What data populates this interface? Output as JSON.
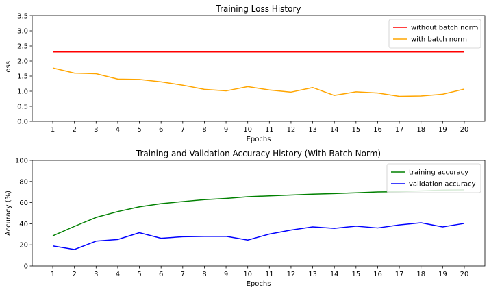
{
  "chart_data": [
    {
      "type": "line",
      "title": "Training Loss History",
      "xlabel": "Epochs",
      "ylabel": "Loss",
      "x": [
        1,
        2,
        3,
        4,
        5,
        6,
        7,
        8,
        9,
        10,
        11,
        12,
        13,
        14,
        15,
        16,
        17,
        18,
        19,
        20
      ],
      "xticks": [
        "1",
        "2",
        "3",
        "4",
        "5",
        "6",
        "7",
        "8",
        "9",
        "10",
        "11",
        "12",
        "13",
        "14",
        "15",
        "16",
        "17",
        "18",
        "19",
        "20"
      ],
      "ylim": [
        0,
        3.5
      ],
      "yticks": [
        "0.0",
        "0.5",
        "1.0",
        "1.5",
        "2.0",
        "2.5",
        "3.0",
        "3.5"
      ],
      "grid": false,
      "legend_position": "top-right",
      "series": [
        {
          "name": "without batch norm",
          "color": "#ff0000",
          "values": [
            2.3,
            2.3,
            2.3,
            2.3,
            2.3,
            2.3,
            2.3,
            2.3,
            2.3,
            2.3,
            2.3,
            2.3,
            2.3,
            2.3,
            2.3,
            2.3,
            2.3,
            2.3,
            2.3,
            2.3
          ]
        },
        {
          "name": "with batch norm",
          "color": "#ffa500",
          "values": [
            1.77,
            1.6,
            1.58,
            1.4,
            1.39,
            1.31,
            1.2,
            1.06,
            1.01,
            1.15,
            1.04,
            0.97,
            1.12,
            0.86,
            0.98,
            0.94,
            0.83,
            0.84,
            0.9,
            1.07
          ]
        }
      ]
    },
    {
      "type": "line",
      "title": "Training and Validation Accuracy History (With Batch Norm)",
      "xlabel": "Epochs",
      "ylabel": "Accuracy (%)",
      "x": [
        1,
        2,
        3,
        4,
        5,
        6,
        7,
        8,
        9,
        10,
        11,
        12,
        13,
        14,
        15,
        16,
        17,
        18,
        19,
        20
      ],
      "xticks": [
        "1",
        "2",
        "3",
        "4",
        "5",
        "6",
        "7",
        "8",
        "9",
        "10",
        "11",
        "12",
        "13",
        "14",
        "15",
        "16",
        "17",
        "18",
        "19",
        "20"
      ],
      "ylim": [
        0,
        100
      ],
      "yticks": [
        "0",
        "20",
        "40",
        "60",
        "80",
        "100"
      ],
      "grid": false,
      "legend_position": "top-right",
      "series": [
        {
          "name": "training accuracy",
          "color": "#008000",
          "values": [
            28.5,
            37.5,
            46.0,
            51.5,
            56.0,
            59.0,
            61.0,
            62.8,
            64.0,
            65.6,
            66.4,
            67.2,
            68.0,
            68.6,
            69.3,
            70.1,
            70.4,
            71.1,
            71.9,
            72.1
          ]
        },
        {
          "name": "validation accuracy",
          "color": "#0000ff",
          "values": [
            19.0,
            15.6,
            23.5,
            25.1,
            31.5,
            26.2,
            27.7,
            28.0,
            28.1,
            24.5,
            30.2,
            34.0,
            37.0,
            35.6,
            37.7,
            36.0,
            38.9,
            40.9,
            37.0,
            40.3
          ]
        }
      ]
    }
  ]
}
